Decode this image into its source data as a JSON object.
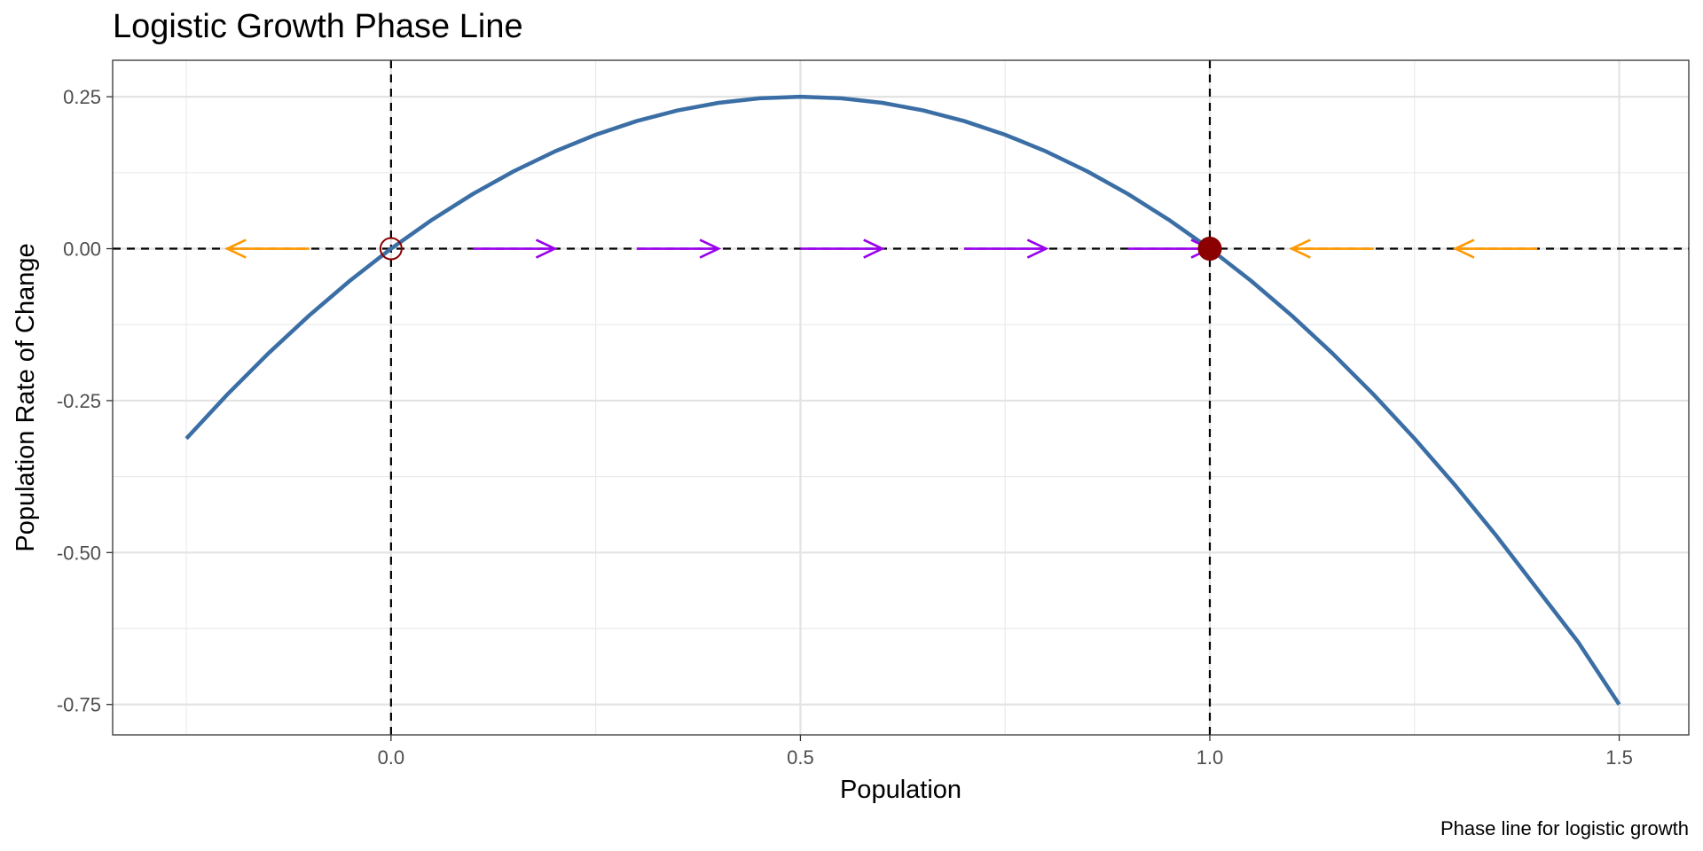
{
  "chart_data": {
    "type": "line",
    "title": "Logistic Growth Phase Line",
    "xlabel": "Population",
    "ylabel": "Population Rate of Change",
    "caption": "Phase line for logistic growth",
    "xlim": [
      -0.34,
      1.585
    ],
    "ylim": [
      -0.8,
      0.31
    ],
    "x_ticks": [
      {
        "value": 0.0,
        "label": "0.0"
      },
      {
        "value": 0.5,
        "label": "0.5"
      },
      {
        "value": 1.0,
        "label": "1.0"
      },
      {
        "value": 1.5,
        "label": "1.5"
      }
    ],
    "y_ticks": [
      {
        "value": 0.25,
        "label": "0.25"
      },
      {
        "value": 0.0,
        "label": "0.00"
      },
      {
        "value": -0.25,
        "label": "-0.25"
      },
      {
        "value": -0.5,
        "label": "-0.50"
      },
      {
        "value": -0.75,
        "label": "-0.75"
      }
    ],
    "x_minor_grid": [
      -0.25,
      0.25,
      0.75,
      1.25
    ],
    "y_minor_grid": [
      0.125,
      -0.125,
      -0.375,
      -0.625
    ],
    "grid": true,
    "series": [
      {
        "x": [
          -0.25,
          -0.2,
          -0.15,
          -0.1,
          -0.05,
          0.0,
          0.05,
          0.1,
          0.15,
          0.2,
          0.25,
          0.3,
          0.35,
          0.4,
          0.45,
          0.5,
          0.55,
          0.6,
          0.65,
          0.7,
          0.75,
          0.8,
          0.85,
          0.9,
          0.95,
          1.0,
          1.05,
          1.1,
          1.15,
          1.2,
          1.25,
          1.3,
          1.35,
          1.4,
          1.45,
          1.5
        ],
        "y": [
          -0.3125,
          -0.24,
          -0.1725,
          -0.11,
          -0.0525,
          0.0,
          0.0475,
          0.09,
          0.1275,
          0.16,
          0.1875,
          0.21,
          0.2275,
          0.24,
          0.2475,
          0.25,
          0.2475,
          0.24,
          0.2275,
          0.21,
          0.1875,
          0.16,
          0.1275,
          0.09,
          0.0475,
          0.0,
          -0.0525,
          -0.11,
          -0.1725,
          -0.24,
          -0.3125,
          -0.39,
          -0.4725,
          -0.56,
          -0.6475,
          -0.75
        ],
        "color": "#3a6ea5"
      }
    ],
    "reference_lines": {
      "vertical": [
        0.0,
        1.0
      ],
      "horizontal": [
        0.0
      ],
      "color": "#000000",
      "style": "dashed"
    },
    "equilibria": [
      {
        "x": 0.0,
        "y": 0.0,
        "stability": "unstable",
        "marker": "open-circle",
        "color": "#8b0000"
      },
      {
        "x": 1.0,
        "y": 0.0,
        "stability": "stable",
        "marker": "filled-circle",
        "color": "#8b0000"
      }
    ],
    "arrows": [
      {
        "from": -0.1,
        "to": -0.2,
        "color": "#ff9900"
      },
      {
        "from": 0.1,
        "to": 0.2,
        "color": "#9900ee"
      },
      {
        "from": 0.3,
        "to": 0.4,
        "color": "#9900ee"
      },
      {
        "from": 0.5,
        "to": 0.6,
        "color": "#9900ee"
      },
      {
        "from": 0.7,
        "to": 0.8,
        "color": "#9900ee"
      },
      {
        "from": 0.9,
        "to": 1.0,
        "color": "#9900ee"
      },
      {
        "from": 1.2,
        "to": 1.1,
        "color": "#ff9900"
      },
      {
        "from": 1.4,
        "to": 1.3,
        "color": "#ff9900"
      }
    ]
  }
}
